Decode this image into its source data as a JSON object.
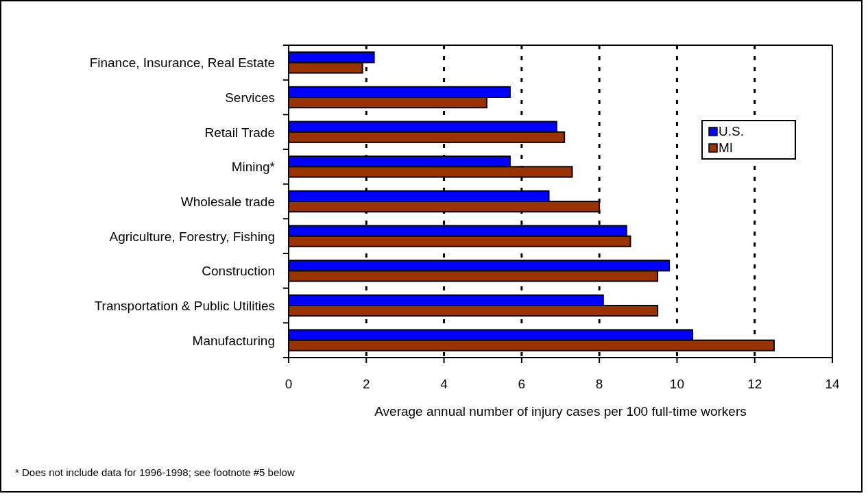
{
  "chart_data": {
    "type": "bar",
    "orientation": "horizontal",
    "xlabel": "Average annual number of injury cases per 100 full-time workers",
    "categories": [
      "Finance, Insurance, Real Estate",
      "Services",
      "Retail Trade",
      "Mining*",
      "Wholesale trade",
      "Agriculture, Forestry, Fishing",
      "Construction",
      "Transportation & Public Utilities",
      "Manufacturing"
    ],
    "series": [
      {
        "name": "U.S.",
        "color": "#0000ff",
        "values": [
          2.2,
          5.7,
          6.9,
          5.7,
          6.7,
          8.7,
          9.8,
          8.1,
          10.4
        ]
      },
      {
        "name": "MI",
        "color": "#993300",
        "values": [
          1.9,
          5.1,
          7.1,
          7.3,
          8.0,
          8.8,
          9.5,
          9.5,
          12.5
        ]
      }
    ],
    "xlim": [
      0,
      14
    ],
    "xticks": [
      0,
      2,
      4,
      6,
      8,
      10,
      12,
      14
    ],
    "grid": "x",
    "legend": "top right",
    "annotations": [
      "* Does not include data for 1996-1998; see footnote #5 below"
    ]
  }
}
